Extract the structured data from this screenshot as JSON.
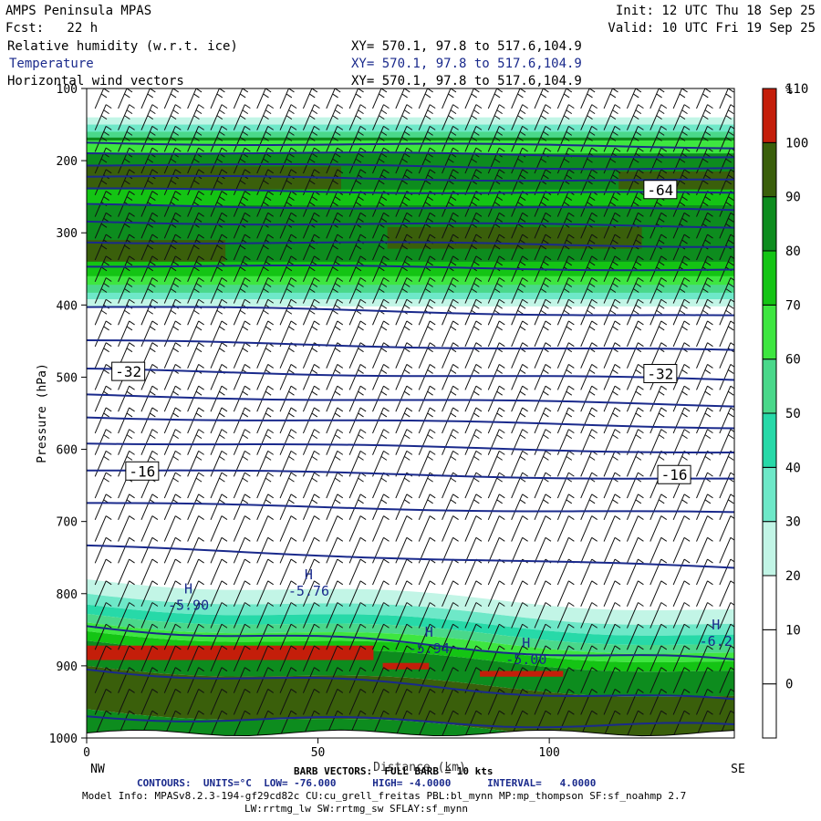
{
  "header": {
    "model": "AMPS Peninsula MPAS",
    "fcst": "Fcst:   22 h",
    "init": "Init: 12 UTC Thu 18 Sep 25",
    "valid": "Valid: 10 UTC Fri 19 Sep 25",
    "fields": [
      {
        "label": "Relative humidity (w.r.t. ice)",
        "xy": "XY= 570.1, 97.8 to 517.6,104.9"
      },
      {
        "label": "Temperature",
        "xy": "XY= 570.1, 97.8 to 517.6,104.9"
      },
      {
        "label": "Horizontal wind vectors",
        "xy": "XY= 570.1, 97.8 to 517.6,104.9"
      }
    ]
  },
  "footer": {
    "barb": "BARB VECTORS:  FULL BARB = 10 kts",
    "contours": "CONTOURS:  UNITS=°C  LOW= -76.000      HIGH= -4.0000      INTERVAL=   4.0000",
    "model_info": "Model Info: MPASv8.2.3-194-gf29cd82c CU:cu_grell_freitas PBL:bl_mynn MP:mp_thompson SF:sf_noahmp 2.7",
    "model_info2": "LW:rrtmg_lw SW:rrtmg_sw SFLAY:sf_mynn"
  },
  "chart_data": {
    "type": "heatmap",
    "title": "Relative humidity (w.r.t. ice), Temperature, Horizontal wind vectors — cross section",
    "xlabel": "Distance (km)",
    "ylabel": "Pressure (hPa)",
    "xlim": [
      0,
      140
    ],
    "ylim": [
      1000,
      100
    ],
    "x_ticks": [
      0,
      50,
      100
    ],
    "y_ticks": [
      100,
      200,
      300,
      400,
      500,
      600,
      700,
      800,
      900,
      1000
    ],
    "endpoint_labels": {
      "left": "NW",
      "right": "SE"
    },
    "colorbar": {
      "unit": "%",
      "bounds": [
        0,
        10,
        20,
        30,
        40,
        50,
        60,
        70,
        80,
        90,
        100,
        110
      ],
      "tick_labels": [
        "0",
        "10",
        "20",
        "30",
        "40",
        "50",
        "60",
        "70",
        "80",
        "90",
        "100",
        "110"
      ],
      "colors": [
        "#ffffff",
        "#ffffff",
        "#ffffff",
        "#c2f5e6",
        "#6ee8c8",
        "#27d9a8",
        "#4ad88a",
        "#3ee640",
        "#14c414",
        "#0d8c1e",
        "#3a5f0b",
        "#c41e0a"
      ]
    },
    "temperature_isotherm_labels": [
      {
        "value": "-64",
        "x_km": 124,
        "p_hpa": 240
      },
      {
        "value": "-32",
        "x_km": 9,
        "p_hpa": 492
      },
      {
        "value": "-32",
        "x_km": 124,
        "p_hpa": 495
      },
      {
        "value": "-16",
        "x_km": 12,
        "p_hpa": 630
      },
      {
        "value": "-16",
        "x_km": 127,
        "p_hpa": 635
      }
    ],
    "highs": [
      {
        "marker": "H",
        "value": "-5.90",
        "x_km": 22,
        "p_hpa": 810
      },
      {
        "marker": "H",
        "value": "-5.76",
        "x_km": 48,
        "p_hpa": 790
      },
      {
        "marker": "H",
        "value": "-5.94",
        "x_km": 74,
        "p_hpa": 870
      },
      {
        "marker": "H",
        "value": "-5.00",
        "x_km": 95,
        "p_hpa": 885
      },
      {
        "marker": "H",
        "value": "-6.2",
        "x_km": 136,
        "p_hpa": 860
      }
    ],
    "rh_layers": [
      {
        "p_top": 165,
        "p_bottom": 380,
        "rh": "80-110"
      },
      {
        "p_top": 380,
        "p_bottom": 405,
        "rh": "30-70"
      },
      {
        "p_top": 780,
        "p_bottom": 845,
        "rh": "30-60"
      },
      {
        "p_top": 845,
        "p_bottom": 1000,
        "rh": "80-110"
      }
    ]
  }
}
